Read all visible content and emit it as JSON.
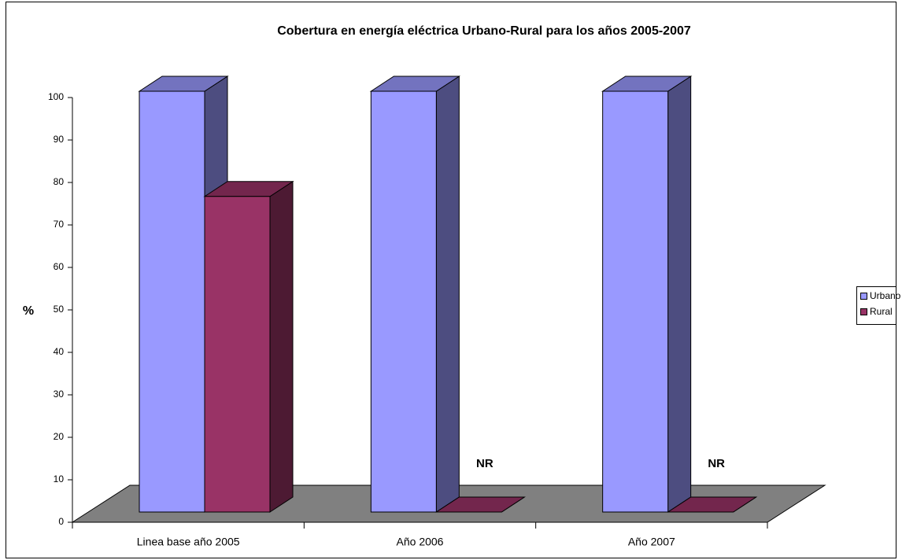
{
  "chart_data": {
    "type": "bar3d",
    "title": "Cobertura en energía eléctrica Urbano-Rural para los años 2005-2007",
    "ylabel": "%",
    "categories": [
      "Linea base año 2005",
      "Año 2006",
      "Año 2007"
    ],
    "series": [
      {
        "name": "Urbano",
        "color": "#9999ff",
        "values": [
          100,
          100,
          100
        ]
      },
      {
        "name": "Rural",
        "color": "#993366",
        "values": [
          75,
          0,
          0
        ]
      }
    ],
    "annotations": [
      {
        "category": 1,
        "text": "NR"
      },
      {
        "category": 2,
        "text": "NR"
      }
    ],
    "ylim": [
      0,
      100
    ],
    "yticks": [
      0,
      10,
      20,
      30,
      40,
      50,
      60,
      70,
      80,
      90,
      100
    ],
    "legend": "right"
  }
}
